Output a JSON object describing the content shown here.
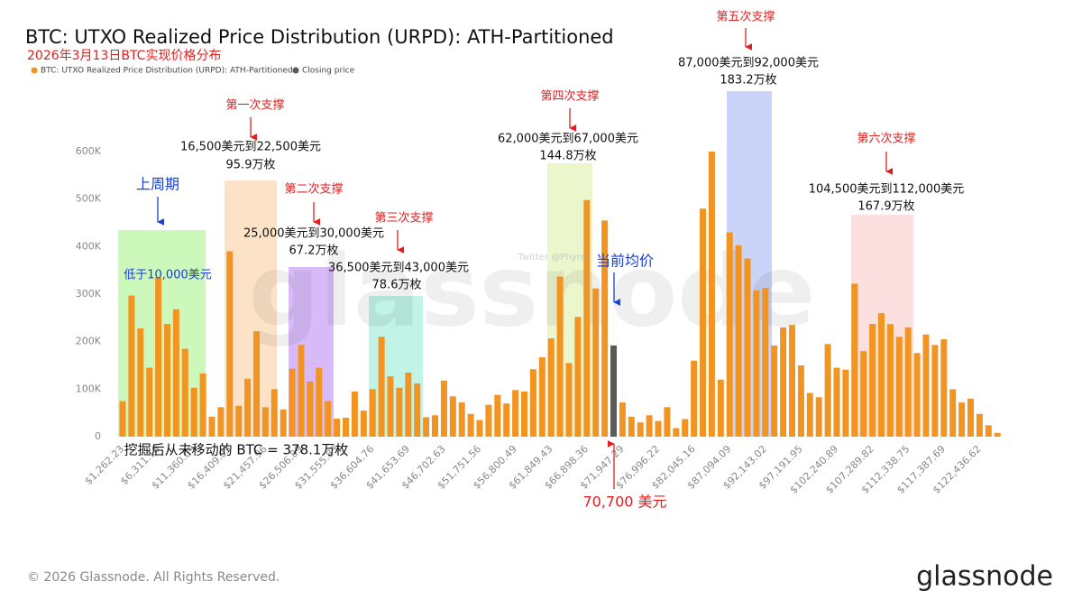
{
  "chart_data": {
    "type": "bar",
    "title": "BTC: UTXO Realized Price Distribution (URPD): ATH-Partitioned",
    "subtitle": "2026年3月13日BTC实现价格分布",
    "categories": [
      "$1,262.23",
      null,
      null,
      null,
      "$6,311.16",
      null,
      null,
      null,
      "$11,360.09",
      null,
      null,
      null,
      "$16,409.03",
      null,
      null,
      null,
      "$21,457.96",
      null,
      null,
      null,
      "$26,506.89",
      null,
      null,
      null,
      "$31,555.83",
      null,
      null,
      null,
      "$36,604.76",
      null,
      null,
      null,
      "$41,653.69",
      null,
      null,
      null,
      "$46,702.63",
      null,
      null,
      null,
      "$51,751.56",
      null,
      null,
      null,
      "$56,800.49",
      null,
      null,
      null,
      "$61,849.43",
      null,
      null,
      null,
      "$66,898.36",
      null,
      null,
      null,
      "$71,947.29",
      null,
      null,
      null,
      "$76,996.22",
      null,
      null,
      null,
      "$82,045.16",
      null,
      null,
      null,
      "$87,094.09",
      null,
      null,
      null,
      "$92,143.02",
      null,
      null,
      null,
      "$97,191.95",
      null,
      null,
      null,
      "$102,240.89",
      null,
      null,
      null,
      "$107,289.82",
      null,
      null,
      null,
      "$112,338.75",
      null,
      null,
      null,
      "$117,387.69",
      null,
      null,
      null,
      "$122,436.62",
      null,
      null
    ],
    "series": [
      {
        "name": "BTC: UTXO Realized Price Distribution (URPD): ATH-Partitioned",
        "color": "#f29422",
        "values": [
          75000,
          297000,
          228000,
          145000,
          335000,
          237000,
          268000,
          185000,
          103000,
          133000,
          42000,
          62000,
          390000,
          65000,
          122000,
          222000,
          62000,
          100000,
          57000,
          143000,
          193000,
          116000,
          145000,
          75000,
          38000,
          40000,
          95000,
          55000,
          100000,
          210000,
          127000,
          103000,
          135000,
          112000,
          41000,
          45000,
          118000,
          85000,
          72000,
          48000,
          35000,
          67000,
          88000,
          70000,
          98000,
          95000,
          142000,
          167000,
          207000,
          337000,
          155000,
          252000,
          498000,
          312000,
          455000,
          null,
          72000,
          42000,
          30000,
          45000,
          33000,
          62000,
          18000,
          37000,
          160000,
          480000,
          600000,
          120000,
          430000,
          403000,
          375000,
          308000,
          313000,
          192000,
          230000,
          235000,
          150000,
          92000,
          83000,
          195000,
          145000,
          141000,
          322000,
          180000,
          237000,
          260000,
          237000,
          210000,
          230000,
          176000,
          215000,
          193000,
          205000,
          100000,
          72000,
          80000,
          48000,
          24000,
          8000
        ]
      },
      {
        "name": "Closing price",
        "color": "#5a5a5a",
        "values": [
          null,
          null,
          null,
          null,
          null,
          null,
          null,
          null,
          null,
          null,
          null,
          null,
          null,
          null,
          null,
          null,
          null,
          null,
          null,
          null,
          null,
          null,
          null,
          null,
          null,
          null,
          null,
          null,
          null,
          null,
          null,
          null,
          null,
          null,
          null,
          null,
          null,
          null,
          null,
          null,
          null,
          null,
          null,
          null,
          null,
          null,
          null,
          null,
          null,
          null,
          null,
          null,
          null,
          null,
          null,
          192000,
          null,
          null,
          null,
          null,
          null,
          null,
          null,
          null,
          null,
          null,
          null,
          null,
          null,
          null,
          null,
          null,
          null,
          null,
          null,
          null,
          null,
          null,
          null,
          null,
          null,
          null,
          null,
          null,
          null,
          null,
          null,
          null,
          null,
          null,
          null,
          null,
          null,
          null,
          null,
          null,
          null,
          null,
          null
        ]
      }
    ],
    "ylim": [
      0,
      600000
    ],
    "yticks": [
      0,
      {
        "value": 100000,
        "label": "100K"
      },
      {
        "value": 200000,
        "label": "200K"
      },
      {
        "value": 300000,
        "label": "300K"
      },
      {
        "value": 400000,
        "label": "400K"
      },
      {
        "value": 500000,
        "label": "500K"
      },
      {
        "value": 600000,
        "label": "600K"
      }
    ],
    "grid": false,
    "annotations": [
      "上周期",
      "低于10,000美元",
      "第一次支撑",
      "16,500美元到22,500美元",
      "95.9万枚",
      "第二次支撑",
      "25,000美元到30,000美元",
      "67.2万枚",
      "第三次支撑",
      "36,500美元到43,000美元",
      "78.6万枚",
      "第四次支撑",
      "62,000美元到67,000美元",
      "144.8万枚",
      "第五次支撑",
      "87,000美元到92,000美元",
      "183.2万枚",
      "第六次支撑",
      "104,500美元到112,000美元",
      "167.9万枚",
      "当前均价",
      "挖掘后从未移动的 BTC = 378.1万枚",
      "70,700 美元",
      "Twitter @Phyrex"
    ],
    "watermark": "glassnode",
    "footer": "© 2026 Glassnode. All Rights Reserved.",
    "logo": "glassnode"
  }
}
